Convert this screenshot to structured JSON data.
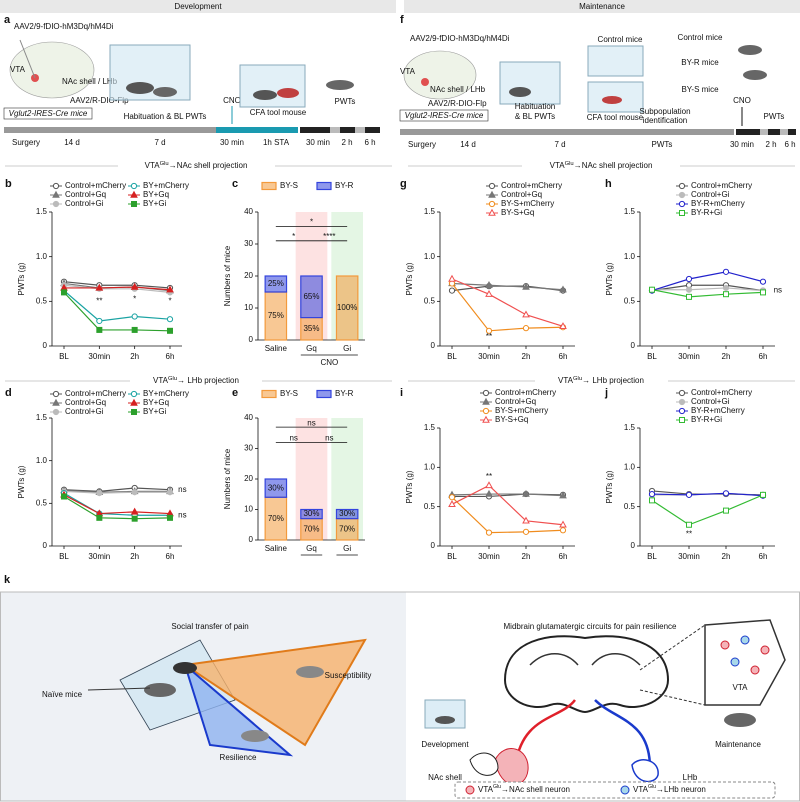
{
  "header": {
    "left": "Development",
    "right": "Maintenance"
  },
  "panel_a": {
    "label": "a",
    "virus1": "AAV2/9-fDIO-hM3Dq/hM4Di",
    "vta": "VTA",
    "target": "NAc shell / LHb",
    "virus2": "AAV2/R-DIO-Flp",
    "mouse_line": "Vglut2-IRES-Cre mice",
    "phase": "Habituation & BL PWTs",
    "cno": "CNO",
    "tool": "CFA tool mouse",
    "test": "PWTs",
    "timeline": [
      "Surgery",
      "14 d",
      "7 d",
      "30 min",
      "1h STA",
      "30 min",
      "2 h",
      "6 h"
    ]
  },
  "panel_f": {
    "label": "f",
    "virus1": "AAV2/9-fDIO-hM3Dq/hM4Di",
    "vta": "VTA",
    "target": "NAc shell / LHb",
    "virus2": "AAV2/R-DIO-Flp",
    "mouse_line": "Vglut2-IRES-Cre mice",
    "phase": [
      "Habituation",
      "& BL PWTs"
    ],
    "control": "Control mice",
    "by_r": "BY-R mice",
    "by_s": "BY-S mice",
    "tool": "CFA tool mouse",
    "identification": [
      "Subpopulation",
      "identification"
    ],
    "cno": "CNO",
    "test": "PWTs",
    "timeline": [
      "Surgery",
      "14 d",
      "7 d",
      "PWTs",
      "30 min",
      "2 h",
      "6 h"
    ]
  },
  "section_titles": [
    {
      "pre": "VTA",
      "sup": "Glu",
      "post": "→NAc shell projection"
    },
    {
      "pre": "VTA",
      "sup": "Glu",
      "post": "→NAc shell projection"
    },
    {
      "pre": "VTA",
      "sup": "Glu",
      "post": "→ LHb projection"
    },
    {
      "pre": "VTA",
      "sup": "Glu",
      "post": "→ LHb projection"
    }
  ],
  "chart_data": [
    {
      "type": "line",
      "label": "b",
      "categories": [
        "BL",
        "30min",
        "2h",
        "6h"
      ],
      "ylabel": "PWTs (g)",
      "ylim": [
        0,
        1.5
      ],
      "yticks": [
        0,
        0.5,
        {
          "value": 1,
          "label": "1.0"
        },
        1.5
      ],
      "series": [
        {
          "name": "Control+mCherry",
          "color": "#555555",
          "marker": "circle-open",
          "values": [
            0.72,
            0.68,
            0.68,
            0.65
          ]
        },
        {
          "name": "Control+Gq",
          "color": "#777777",
          "marker": "triangle",
          "values": [
            0.7,
            0.65,
            0.66,
            0.62
          ]
        },
        {
          "name": "Control+Gi",
          "color": "#bbbbbb",
          "marker": "circle",
          "values": [
            0.68,
            0.64,
            0.64,
            0.6
          ]
        },
        {
          "name": "BY+mCherry",
          "color": "#1aa3a3",
          "marker": "circle-open",
          "values": [
            0.62,
            0.28,
            0.33,
            0.3
          ]
        },
        {
          "name": "BY+Gq",
          "color": "#d62020",
          "marker": "triangle",
          "values": [
            0.65,
            0.65,
            0.66,
            0.63
          ]
        },
        {
          "name": "BY+Gi",
          "color": "#2ca02c",
          "marker": "square",
          "values": [
            0.6,
            0.18,
            0.18,
            0.17
          ]
        }
      ],
      "annotations": [
        "**",
        "*",
        "*"
      ]
    },
    {
      "type": "stacked_bar",
      "label": "c",
      "categories": [
        "Saline",
        "Gq",
        "Gi"
      ],
      "group_label": "CNO",
      "ylabel": "Numbers of mice",
      "ylim": [
        0,
        40
      ],
      "yticks": [
        0,
        10,
        20,
        30,
        40
      ],
      "band_colors": [
        "none",
        "#fde2e2",
        "#e4f6e4"
      ],
      "series": [
        {
          "name": "BY-S",
          "color": "#f39a3c",
          "values": [
            15,
            7,
            20
          ],
          "segment_labels": [
            "75%",
            "35%",
            "100%"
          ]
        },
        {
          "name": "BY-R",
          "color": "#3344dd",
          "values": [
            5,
            13,
            0
          ],
          "segment_labels": [
            "25%",
            "65%",
            null
          ]
        }
      ],
      "annotations": [
        "*",
        "****",
        "*"
      ]
    },
    {
      "type": "line",
      "label": "d",
      "categories": [
        "BL",
        "30min",
        "2h",
        "6h"
      ],
      "ylabel": "PWTs (g)",
      "ylim": [
        0,
        1.5
      ],
      "yticks": [
        0,
        0.5,
        {
          "value": 1,
          "label": "1.0"
        },
        1.5
      ],
      "series": [
        {
          "name": "Control+mCherry",
          "color": "#555555",
          "marker": "circle-open",
          "values": [
            0.66,
            0.64,
            0.68,
            0.66
          ]
        },
        {
          "name": "Control+Gq",
          "color": "#777777",
          "marker": "triangle",
          "values": [
            0.65,
            0.63,
            0.64,
            0.64
          ]
        },
        {
          "name": "Control+Gi",
          "color": "#bbbbbb",
          "marker": "circle",
          "values": [
            0.64,
            0.62,
            0.63,
            0.63
          ]
        },
        {
          "name": "BY+mCherry",
          "color": "#1aa3a3",
          "marker": "circle-open",
          "values": [
            0.62,
            0.38,
            0.36,
            0.36
          ]
        },
        {
          "name": "BY+Gq",
          "color": "#d62020",
          "marker": "triangle",
          "values": [
            0.6,
            0.38,
            0.4,
            0.38
          ]
        },
        {
          "name": "BY+Gi",
          "color": "#2ca02c",
          "marker": "square",
          "values": [
            0.58,
            0.33,
            0.32,
            0.33
          ]
        }
      ],
      "annotations": [
        "ns",
        "ns"
      ]
    },
    {
      "type": "stacked_bar",
      "label": "e",
      "categories": [
        "Saline",
        "Gq",
        "Gi"
      ],
      "ylabel": "Numbers of mice",
      "ylim": [
        0,
        40
      ],
      "yticks": [
        0,
        10,
        20,
        30,
        40
      ],
      "band_colors": [
        "none",
        "#fde2e2",
        "#e4f6e4"
      ],
      "series": [
        {
          "name": "BY-S",
          "color": "#f39a3c",
          "values": [
            14,
            7,
            7
          ],
          "segment_labels": [
            "70%",
            "70%",
            "70%"
          ]
        },
        {
          "name": "BY-R",
          "color": "#3344dd",
          "values": [
            6,
            3,
            3
          ],
          "segment_labels": [
            "30%",
            "30%",
            "30%"
          ]
        }
      ],
      "annotations": [
        "ns",
        "ns",
        "ns"
      ]
    },
    {
      "type": "line",
      "label": "g",
      "categories": [
        "BL",
        "30min",
        "2h",
        "6h"
      ],
      "ylabel": "PWTs (g)",
      "ylim": [
        0,
        1.5
      ],
      "yticks": [
        0,
        0.5,
        {
          "value": 1,
          "label": "1.0"
        },
        1.5
      ],
      "series": [
        {
          "name": "Control+mCherry",
          "color": "#555555",
          "marker": "circle-open",
          "values": [
            0.62,
            0.67,
            0.67,
            0.62
          ]
        },
        {
          "name": "Control+Gq",
          "color": "#777777",
          "marker": "triangle",
          "values": [
            0.7,
            0.68,
            0.66,
            0.63
          ]
        },
        {
          "name": "BY-S+mCherry",
          "color": "#f08c1e",
          "marker": "circle-open",
          "values": [
            0.7,
            0.17,
            0.2,
            0.21
          ]
        },
        {
          "name": "BY-S+Gq",
          "color": "#f05050",
          "marker": "triangle-open",
          "values": [
            0.75,
            0.58,
            0.35,
            0.22
          ]
        }
      ],
      "annotations": [
        "**"
      ]
    },
    {
      "type": "line",
      "label": "h",
      "categories": [
        "BL",
        "30min",
        "2h",
        "6h"
      ],
      "ylabel": "PWTs (g)",
      "ylim": [
        0,
        1.5
      ],
      "yticks": [
        0,
        0.5,
        {
          "value": 1,
          "label": "1.0"
        },
        1.5
      ],
      "series": [
        {
          "name": "Control+mCherry",
          "color": "#555555",
          "marker": "circle-open",
          "values": [
            0.62,
            0.68,
            0.68,
            0.62
          ]
        },
        {
          "name": "Control+Gi",
          "color": "#bbbbbb",
          "marker": "circle",
          "values": [
            0.63,
            0.63,
            0.65,
            0.62
          ]
        },
        {
          "name": "BY-R+mCherry",
          "color": "#2222cc",
          "marker": "circle-open",
          "values": [
            0.62,
            0.75,
            0.83,
            0.72
          ]
        },
        {
          "name": "BY-R+Gi",
          "color": "#33bb33",
          "marker": "square-open",
          "values": [
            0.63,
            0.55,
            0.58,
            0.6
          ]
        }
      ],
      "annotations": [
        "ns"
      ]
    },
    {
      "type": "line",
      "label": "i",
      "categories": [
        "BL",
        "30min",
        "2h",
        "6h"
      ],
      "ylabel": "PWTs (g)",
      "ylim": [
        0,
        1.5
      ],
      "yticks": [
        0,
        0.5,
        {
          "value": 1,
          "label": "1.0"
        },
        1.5
      ],
      "series": [
        {
          "name": "Control+mCherry",
          "color": "#555555",
          "marker": "circle-open",
          "values": [
            0.63,
            0.63,
            0.66,
            0.65
          ]
        },
        {
          "name": "Control+Gq",
          "color": "#777777",
          "marker": "triangle",
          "values": [
            0.65,
            0.66,
            0.66,
            0.64
          ]
        },
        {
          "name": "BY-S+mCherry",
          "color": "#f08c1e",
          "marker": "circle-open",
          "values": [
            0.62,
            0.17,
            0.18,
            0.2
          ]
        },
        {
          "name": "BY-S+Gq",
          "color": "#f05050",
          "marker": "triangle-open",
          "values": [
            0.53,
            0.77,
            0.32,
            0.27
          ]
        }
      ],
      "annotations": [
        "**"
      ]
    },
    {
      "type": "line",
      "label": "j",
      "categories": [
        "BL",
        "30min",
        "2h",
        "6h"
      ],
      "ylabel": "PWTs (g)",
      "ylim": [
        0,
        1.5
      ],
      "yticks": [
        0,
        0.5,
        {
          "value": 1,
          "label": "1.0"
        },
        1.5
      ],
      "series": [
        {
          "name": "Control+mCherry",
          "color": "#555555",
          "marker": "circle-open",
          "values": [
            0.7,
            0.66,
            0.66,
            0.65
          ]
        },
        {
          "name": "Control+Gi",
          "color": "#bbbbbb",
          "marker": "circle",
          "values": [
            0.65,
            0.65,
            0.67,
            0.64
          ]
        },
        {
          "name": "BY-R+mCherry",
          "color": "#2222cc",
          "marker": "circle-open",
          "values": [
            0.66,
            0.65,
            0.67,
            0.64
          ]
        },
        {
          "name": "BY-R+Gi",
          "color": "#33bb33",
          "marker": "square-open",
          "values": [
            0.58,
            0.27,
            0.45,
            0.65
          ]
        }
      ],
      "annotations": [
        "**"
      ]
    }
  ],
  "panel_k": {
    "label": "k",
    "left_title": "Social transfer of pain",
    "naive": "Naïve mice",
    "susceptibility": "Susceptibility",
    "resilience": "Resilience",
    "right_title": "Midbrain glutamatergic circuits for pain resilience",
    "vta": "VTA",
    "development": "Development",
    "maintenance": "Maintenance",
    "nac": "NAc shell",
    "lhb": "LHb",
    "legend": [
      {
        "pre": "VTA",
        "sup": "Glu",
        "post": "→NAc shell neuron"
      },
      {
        "pre": "VTA",
        "sup": "Glu",
        "post": "→LHb neuron"
      }
    ]
  }
}
